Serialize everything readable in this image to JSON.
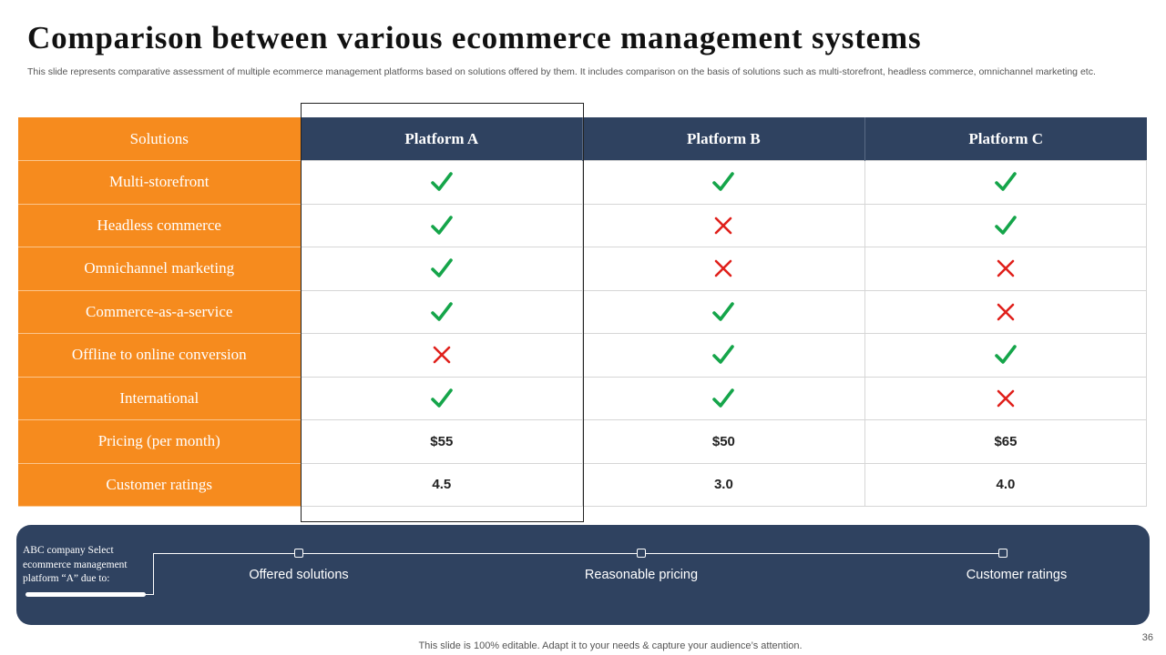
{
  "slide": {
    "title": "Comparison between various ecommerce management systems",
    "subtitle": "This slide represents comparative assessment of multiple ecommerce management platforms based on solutions offered by them. It includes comparison on the basis of solutions such as multi-storefront, headless commerce, omnichannel marketing etc.",
    "footer": "This slide is 100% editable. Adapt it to your needs & capture your audience’s attention.",
    "page_number": "36"
  },
  "colors": {
    "orange": "#f68b1e",
    "navy": "#2f4260",
    "check_green": "#15a54a",
    "cross_red": "#e0201b"
  },
  "table": {
    "header": {
      "solutions": "Solutions",
      "platforms": [
        "Platform A",
        "Platform B",
        "Platform C"
      ]
    },
    "rows": [
      {
        "label": "Multi-storefront",
        "values": [
          "check",
          "check",
          "check"
        ]
      },
      {
        "label": "Headless commerce",
        "values": [
          "check",
          "cross",
          "check"
        ]
      },
      {
        "label": "Omnichannel marketing",
        "values": [
          "check",
          "cross",
          "cross"
        ]
      },
      {
        "label": "Commerce-as-a-service",
        "values": [
          "check",
          "check",
          "cross"
        ]
      },
      {
        "label": "Offline to online conversion",
        "values": [
          "cross",
          "check",
          "check"
        ]
      },
      {
        "label": "International",
        "values": [
          "check",
          "check",
          "cross"
        ]
      },
      {
        "label": "Pricing (per month)",
        "values": [
          "$55",
          "$50",
          "$65"
        ]
      },
      {
        "label": "Customer ratings",
        "values": [
          "4.5",
          "3.0",
          "4.0"
        ]
      }
    ],
    "highlighted_column": "Platform A"
  },
  "banner": {
    "label": "ABC company Select ecommerce management platform “A” due to:",
    "points": [
      "Offered solutions",
      "Reasonable pricing",
      "Customer ratings"
    ]
  }
}
